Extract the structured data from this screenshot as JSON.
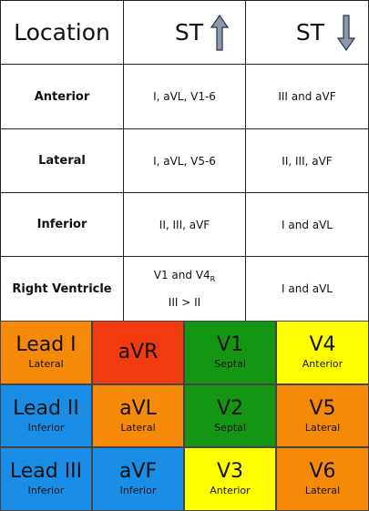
{
  "table": {
    "header": {
      "location": "Location",
      "st_up": "ST",
      "st_down": "ST"
    },
    "rows": [
      {
        "location": "Anterior",
        "st_up": "I, aVL, V1-6",
        "st_down": "III and aVF"
      },
      {
        "location": "Lateral",
        "st_up": "I, aVL, V5-6",
        "st_down": "II, III, aVF"
      },
      {
        "location": "Inferior",
        "st_up": "II, III, aVF",
        "st_down": "I and aVL"
      },
      {
        "location": "Right Ventricle",
        "st_up_line1": "V1 and V4",
        "st_up_line1_sub": "R",
        "st_up_line2": "III > II",
        "st_down": "I and aVL"
      }
    ],
    "icons": {
      "up": "arrow-up-icon",
      "down": "arrow-down-icon",
      "arrow_color": "#8a9aac"
    }
  },
  "leads": {
    "colors": {
      "lateral": "#f58a0a",
      "inferior": "#1a8ee6",
      "septal": "#149614",
      "anterior": "#ffff00",
      "avr": "#f23a10"
    },
    "grid": [
      [
        {
          "name": "Lead I",
          "region": "Lateral",
          "color": "#f58a0a"
        },
        {
          "name": "aVR",
          "region": "",
          "color": "#f23a10"
        },
        {
          "name": "V1",
          "region": "Septal",
          "color": "#149614"
        },
        {
          "name": "V4",
          "region": "Anterior",
          "color": "#ffff00"
        }
      ],
      [
        {
          "name": "Lead II",
          "region": "Inferior",
          "color": "#1a8ee6"
        },
        {
          "name": "aVL",
          "region": "Lateral",
          "color": "#f58a0a"
        },
        {
          "name": "V2",
          "region": "Septal",
          "color": "#149614"
        },
        {
          "name": "V5",
          "region": "Lateral",
          "color": "#f58a0a"
        }
      ],
      [
        {
          "name": "Lead III",
          "region": "Inferior",
          "color": "#1a8ee6"
        },
        {
          "name": "aVF",
          "region": "Inferior",
          "color": "#1a8ee6"
        },
        {
          "name": "V3",
          "region": "Anterior",
          "color": "#ffff00"
        },
        {
          "name": "V6",
          "region": "Lateral",
          "color": "#f58a0a"
        }
      ]
    ]
  }
}
